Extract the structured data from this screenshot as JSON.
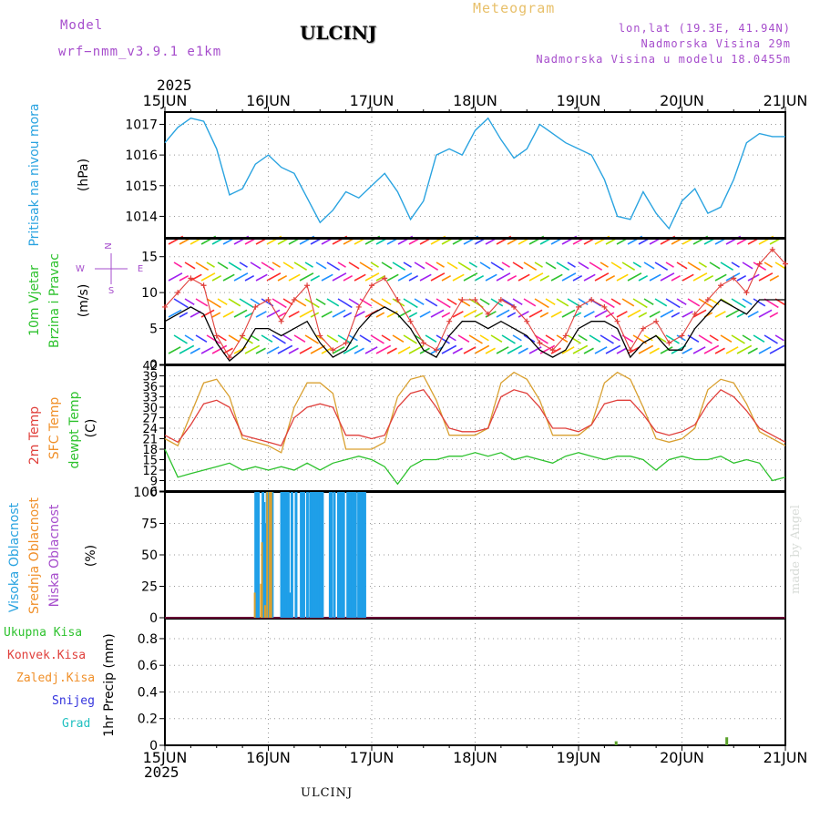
{
  "header": {
    "model_label": "Model",
    "model_name": "wrf−nmm_v3.9.1  e1km",
    "title": "ULCINJ",
    "meteogram": "Meteogram",
    "lonlat": "lon,lat (19.3E, 41.94N)",
    "elevation": "Nadmorska Visina 29m",
    "model_elevation": "Nadmorska Visina u modelu 18.0455m",
    "year_top": "2025",
    "year_bottom": "2025",
    "footer_station": "ULCINJ",
    "credit": "made by Angel"
  },
  "colors": {
    "pressure": "#29a3e0",
    "wind_speed": "#000000",
    "wind_gust": "#e0403c",
    "temp_2m": "#e0403c",
    "temp_sfc": "#d9a030",
    "dewpoint": "#2ec22e",
    "cloud_high": "#1f9fe8",
    "cloud_mid": "#d9a030",
    "cloud_low": "#d4206e",
    "precip": "#5aa02a",
    "label_green": "#2ec22e",
    "label_red": "#e0403c",
    "label_orange": "#f0902a",
    "label_blue": "#3333dd",
    "label_cyan": "#20c0c0",
    "label_purple": "#a64dcc",
    "label_sky": "#29a3e0"
  },
  "x_axis": {
    "days": [
      "15JUN",
      "16JUN",
      "17JUN",
      "18JUN",
      "19JUN",
      "20JUN",
      "21JUN"
    ]
  },
  "panels": {
    "pressure": {
      "label": "Pritisak na nivou mora",
      "unit": "(hPa)",
      "ticks": [
        "1014",
        "1015",
        "1016",
        "1017"
      ]
    },
    "wind": {
      "label1": "10m Vjetar",
      "label2": "Brzina i Pravac",
      "unit": "(m/s)",
      "ticks": [
        "0",
        "5",
        "10",
        "15"
      ],
      "compass": [
        "N",
        "W",
        "E",
        "S"
      ]
    },
    "temp": {
      "label_2m": "2m Temp",
      "label_sfc": "SFC Temp",
      "label_dew": "dewpt Temp",
      "unit": "(C)",
      "ticks": [
        "6",
        "9",
        "12",
        "15",
        "18",
        "21",
        "24",
        "27",
        "30",
        "33",
        "36",
        "39",
        "42"
      ]
    },
    "cloud": {
      "label_high": "Visoka Oblacnost",
      "label_mid": "Srednja Oblacnost",
      "label_low": "Niska Oblacnost",
      "unit": "(%)",
      "ticks": [
        "0",
        "25",
        "50",
        "75",
        "100"
      ]
    },
    "precip": {
      "legend": [
        "Ukupna Kisa",
        "Konvek.Kisa",
        "Zaledj.Kisa",
        "Snijeg",
        "Grad"
      ],
      "unit": "1hr Precip (mm)",
      "ticks": [
        "0",
        "0.2",
        "0.4",
        "0.6",
        "0.8"
      ]
    }
  },
  "chart_data": [
    {
      "type": "line",
      "title": "Pritisak na nivou mora",
      "ylabel": "(hPa)",
      "ylim": [
        1013.3,
        1017.4
      ],
      "x": [
        0,
        3,
        6,
        9,
        12,
        15,
        18,
        21,
        24,
        27,
        30,
        33,
        36,
        39,
        42,
        45,
        48,
        51,
        54,
        57,
        60,
        63,
        66,
        69,
        72,
        75,
        78,
        81,
        84,
        87,
        90,
        93,
        96,
        99,
        102,
        105,
        108,
        111,
        114,
        117,
        120,
        123,
        126,
        129,
        132,
        135,
        138,
        141,
        144
      ],
      "series": [
        {
          "name": "",
          "values": [
            1016.4,
            1016.9,
            1017.2,
            1017.1,
            1016.2,
            1014.7,
            1014.9,
            1015.7,
            1016.0,
            1015.6,
            1015.4,
            1014.6,
            1013.8,
            1014.2,
            1014.8,
            1014.6,
            1015.0,
            1015.4,
            1014.8,
            1013.9,
            1014.5,
            1016.0,
            1016.2,
            1016.0,
            1016.8,
            1017.2,
            1016.5,
            1015.9,
            1016.2,
            1017.0,
            1016.7,
            1016.4,
            1016.2,
            1016.0,
            1015.2,
            1014.0,
            1013.9,
            1014.8,
            1014.1,
            1013.6,
            1014.5,
            1014.9,
            1014.1,
            1014.3,
            1015.2,
            1016.4,
            1016.7,
            1016.6,
            1016.6
          ]
        }
      ]
    },
    {
      "type": "line",
      "title": "10m Vjetar Brzina i Pravac",
      "ylabel": "(m/s)",
      "ylim": [
        0,
        17.5
      ],
      "x": [
        0,
        3,
        6,
        9,
        12,
        15,
        18,
        21,
        24,
        27,
        30,
        33,
        36,
        39,
        42,
        45,
        48,
        51,
        54,
        57,
        60,
        63,
        66,
        69,
        72,
        75,
        78,
        81,
        84,
        87,
        90,
        93,
        96,
        99,
        102,
        105,
        108,
        111,
        114,
        117,
        120,
        123,
        126,
        129,
        132,
        135,
        138,
        141,
        144
      ],
      "series": [
        {
          "name": "",
          "values": [
            6,
            7,
            8,
            7,
            3,
            0.5,
            2,
            5,
            5,
            4,
            5,
            6,
            3,
            1,
            2,
            5,
            7,
            8,
            7,
            5,
            2,
            1,
            4,
            6,
            6,
            5,
            6,
            5,
            4,
            2,
            1,
            2,
            5,
            6,
            6,
            5,
            1,
            3,
            4,
            2,
            2,
            5,
            7,
            9,
            8,
            7,
            9,
            9,
            9
          ]
        },
        {
          "name": "",
          "values": [
            8,
            10,
            12,
            11,
            4,
            1,
            4,
            8,
            9,
            6,
            9,
            11,
            4,
            2,
            3,
            8,
            11,
            12,
            9,
            6,
            3,
            2,
            6,
            9,
            9,
            7,
            9,
            8,
            6,
            3,
            2,
            4,
            8,
            9,
            8,
            6,
            2,
            5,
            6,
            3,
            4,
            7,
            9,
            11,
            12,
            10,
            14,
            16,
            14
          ]
        }
      ]
    },
    {
      "type": "line",
      "title": "Temp",
      "ylabel": "(C)",
      "ylim": [
        6,
        42
      ],
      "x": [
        0,
        3,
        6,
        9,
        12,
        15,
        18,
        21,
        24,
        27,
        30,
        33,
        36,
        39,
        42,
        45,
        48,
        51,
        54,
        57,
        60,
        63,
        66,
        69,
        72,
        75,
        78,
        81,
        84,
        87,
        90,
        93,
        96,
        99,
        102,
        105,
        108,
        111,
        114,
        117,
        120,
        123,
        126,
        129,
        132,
        135,
        138,
        141,
        144
      ],
      "series": [
        {
          "name": "2m Temp",
          "values": [
            22,
            20,
            25,
            31,
            32,
            30,
            22,
            21,
            20,
            19,
            27,
            30,
            31,
            30,
            22,
            22,
            21,
            22,
            30,
            34,
            35,
            30,
            24,
            23,
            23,
            24,
            33,
            35,
            34,
            30,
            24,
            24,
            23,
            25,
            31,
            32,
            32,
            28,
            23,
            22,
            23,
            25,
            31,
            35,
            33,
            29,
            24,
            22,
            20
          ]
        },
        {
          "name": "SFC Temp",
          "values": [
            21,
            19,
            28,
            37,
            38,
            33,
            21,
            20,
            19,
            17,
            30,
            37,
            37,
            34,
            18,
            18,
            18,
            20,
            33,
            38,
            39,
            32,
            22,
            22,
            22,
            24,
            37,
            40,
            38,
            32,
            22,
            22,
            22,
            25,
            37,
            40,
            38,
            30,
            21,
            20,
            21,
            24,
            35,
            38,
            37,
            31,
            23,
            21,
            19
          ]
        },
        {
          "name": "dewpt Temp",
          "values": [
            18,
            10,
            11,
            12,
            13,
            14,
            12,
            13,
            12,
            13,
            12,
            14,
            12,
            14,
            15,
            16,
            15,
            13,
            8,
            13,
            15,
            15,
            16,
            16,
            17,
            16,
            17,
            15,
            16,
            15,
            14,
            16,
            17,
            16,
            15,
            16,
            16,
            15,
            12,
            15,
            16,
            15,
            15,
            16,
            14,
            15,
            14,
            9,
            10
          ]
        }
      ]
    },
    {
      "type": "bar",
      "title": "Oblacnost",
      "ylabel": "(%)",
      "ylim": [
        0,
        100
      ],
      "series": [
        {
          "name": "Visoka Oblacnost",
          "x": [
            17.3,
            17.8,
            18.7,
            18.9,
            19.1,
            19.3,
            19.5,
            19.7,
            20.3,
            20.5,
            22.3,
            22.7,
            23.1,
            23.3,
            23.6,
            24.0,
            24.3,
            25.1,
            26.1,
            26.3,
            26.6,
            27.3,
            27.9,
            28.2,
            28.6,
            29.0,
            29.3,
            29.5,
            29.8,
            30.2,
            31.7,
            31.9,
            32.5,
            33.3,
            33.6,
            33.9,
            34.3,
            35.1,
            35.3,
            35.5,
            35.7,
            36.1,
            36.4,
            36.6,
            37.2,
            37.5,
            37.7,
            38.1,
            38.4
          ],
          "values": [
            100,
            100,
            100,
            92,
            57,
            75,
            100,
            100,
            100,
            100,
            100,
            100,
            100,
            92,
            100,
            20,
            100,
            100,
            100,
            100,
            100,
            100,
            100,
            100,
            100,
            100,
            100,
            100,
            100,
            100,
            100,
            100,
            100,
            100,
            100,
            100,
            100,
            100,
            100,
            100,
            100,
            100,
            100,
            100,
            100,
            100,
            100,
            100,
            100
          ]
        },
        {
          "name": "Srednja Oblacnost",
          "x": [
            17.2,
            18.4,
            18.6,
            19.2,
            19.6,
            20.1,
            20.4
          ],
          "values": [
            20,
            27,
            60,
            10,
            100,
            100,
            100
          ]
        },
        {
          "name": "Niska Oblacnost",
          "x": [],
          "values": []
        }
      ]
    },
    {
      "type": "bar",
      "title": "1hr Precip",
      "ylabel": "1hr Precip (mm)",
      "ylim": [
        0,
        0.95
      ],
      "series": [
        {
          "name": "Ukupna Kisa",
          "x": [
            4.35,
            5.42
          ],
          "values": [
            0.03,
            0.06
          ]
        }
      ]
    }
  ]
}
